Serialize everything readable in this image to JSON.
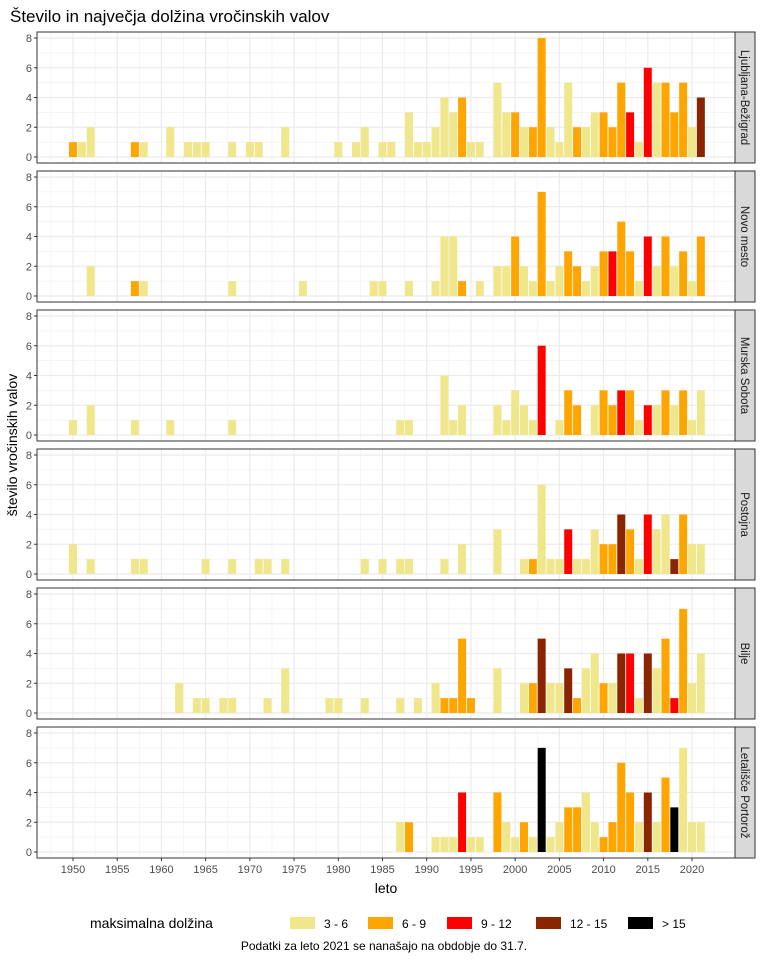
{
  "chart_data": {
    "type": "bar",
    "title": "Število in največja dolžina vročinskih valov",
    "xlabel": "leto",
    "ylabel": "število vročinskih valov",
    "xlim": [
      1946,
      2025
    ],
    "ylim": [
      0,
      8
    ],
    "x_ticks": [
      1950,
      1955,
      1960,
      1965,
      1970,
      1975,
      1980,
      1985,
      1990,
      1995,
      2000,
      2005,
      2010,
      2015,
      2020
    ],
    "y_ticks": [
      0,
      2,
      4,
      6,
      8
    ],
    "grid": true,
    "legend": {
      "title": "maksimalna dolžina",
      "placement": "bottom",
      "categories": [
        {
          "label": "3 - 6",
          "color": "#F0E68C"
        },
        {
          "label": "6 - 9",
          "color": "#FFA500"
        },
        {
          "label": "9 - 12",
          "color": "#FF0000"
        },
        {
          "label": "12 - 15",
          "color": "#8B2500"
        },
        {
          "label": "> 15",
          "color": "#000000"
        }
      ]
    },
    "note": "Podatki za leto 2021 se nanašajo na obdobje do 31.7.",
    "bar_fields": [
      "year",
      "count",
      "max_length_category_index"
    ],
    "panels": [
      {
        "name": "Ljubljana-Bežigrad",
        "bars": [
          [
            1950,
            1,
            1
          ],
          [
            1951,
            1,
            0
          ],
          [
            1952,
            2,
            0
          ],
          [
            1957,
            1,
            1
          ],
          [
            1958,
            1,
            0
          ],
          [
            1961,
            2,
            0
          ],
          [
            1963,
            1,
            0
          ],
          [
            1964,
            1,
            0
          ],
          [
            1965,
            1,
            0
          ],
          [
            1968,
            1,
            0
          ],
          [
            1970,
            1,
            0
          ],
          [
            1971,
            1,
            0
          ],
          [
            1974,
            2,
            0
          ],
          [
            1980,
            1,
            0
          ],
          [
            1982,
            1,
            0
          ],
          [
            1983,
            2,
            0
          ],
          [
            1985,
            1,
            0
          ],
          [
            1986,
            1,
            0
          ],
          [
            1988,
            3,
            0
          ],
          [
            1989,
            1,
            0
          ],
          [
            1990,
            1,
            0
          ],
          [
            1991,
            2,
            0
          ],
          [
            1992,
            4,
            0
          ],
          [
            1993,
            3,
            0
          ],
          [
            1994,
            4,
            1
          ],
          [
            1995,
            1,
            0
          ],
          [
            1996,
            1,
            0
          ],
          [
            1998,
            5,
            0
          ],
          [
            1999,
            3,
            0
          ],
          [
            2000,
            3,
            1
          ],
          [
            2001,
            2,
            0
          ],
          [
            2002,
            2,
            1
          ],
          [
            2003,
            8,
            1
          ],
          [
            2004,
            2,
            0
          ],
          [
            2005,
            1,
            0
          ],
          [
            2006,
            5,
            0
          ],
          [
            2007,
            2,
            1
          ],
          [
            2008,
            2,
            0
          ],
          [
            2009,
            3,
            0
          ],
          [
            2010,
            3,
            1
          ],
          [
            2011,
            2,
            1
          ],
          [
            2012,
            5,
            1
          ],
          [
            2013,
            3,
            2
          ],
          [
            2014,
            1,
            0
          ],
          [
            2015,
            6,
            2
          ],
          [
            2016,
            5,
            0
          ],
          [
            2017,
            5,
            1
          ],
          [
            2018,
            3,
            1
          ],
          [
            2019,
            5,
            1
          ],
          [
            2020,
            2,
            0
          ],
          [
            2021,
            4,
            3
          ]
        ]
      },
      {
        "name": "Novo mesto",
        "bars": [
          [
            1952,
            2,
            0
          ],
          [
            1957,
            1,
            1
          ],
          [
            1958,
            1,
            0
          ],
          [
            1968,
            1,
            0
          ],
          [
            1976,
            1,
            0
          ],
          [
            1984,
            1,
            0
          ],
          [
            1985,
            1,
            0
          ],
          [
            1988,
            1,
            0
          ],
          [
            1991,
            1,
            0
          ],
          [
            1992,
            4,
            0
          ],
          [
            1993,
            4,
            0
          ],
          [
            1994,
            1,
            1
          ],
          [
            1996,
            1,
            0
          ],
          [
            1998,
            2,
            0
          ],
          [
            1999,
            2,
            0
          ],
          [
            2000,
            4,
            1
          ],
          [
            2001,
            2,
            0
          ],
          [
            2002,
            1,
            0
          ],
          [
            2003,
            7,
            1
          ],
          [
            2004,
            1,
            0
          ],
          [
            2005,
            2,
            0
          ],
          [
            2006,
            3,
            1
          ],
          [
            2007,
            2,
            1
          ],
          [
            2008,
            1,
            0
          ],
          [
            2009,
            2,
            0
          ],
          [
            2010,
            3,
            1
          ],
          [
            2011,
            3,
            2
          ],
          [
            2012,
            5,
            1
          ],
          [
            2013,
            3,
            1
          ],
          [
            2014,
            1,
            0
          ],
          [
            2015,
            4,
            2
          ],
          [
            2016,
            2,
            0
          ],
          [
            2017,
            4,
            1
          ],
          [
            2018,
            2,
            0
          ],
          [
            2019,
            3,
            1
          ],
          [
            2020,
            1,
            0
          ],
          [
            2021,
            4,
            1
          ]
        ]
      },
      {
        "name": "Murska Sobota",
        "bars": [
          [
            1950,
            1,
            0
          ],
          [
            1952,
            2,
            0
          ],
          [
            1957,
            1,
            0
          ],
          [
            1961,
            1,
            0
          ],
          [
            1968,
            1,
            0
          ],
          [
            1987,
            1,
            0
          ],
          [
            1988,
            1,
            0
          ],
          [
            1992,
            4,
            0
          ],
          [
            1993,
            1,
            0
          ],
          [
            1994,
            2,
            0
          ],
          [
            1998,
            2,
            0
          ],
          [
            1999,
            1,
            0
          ],
          [
            2000,
            3,
            0
          ],
          [
            2001,
            2,
            0
          ],
          [
            2002,
            1,
            0
          ],
          [
            2003,
            6,
            2
          ],
          [
            2005,
            1,
            0
          ],
          [
            2006,
            3,
            1
          ],
          [
            2007,
            2,
            1
          ],
          [
            2009,
            2,
            0
          ],
          [
            2010,
            3,
            1
          ],
          [
            2011,
            2,
            1
          ],
          [
            2012,
            3,
            2
          ],
          [
            2013,
            3,
            1
          ],
          [
            2014,
            1,
            0
          ],
          [
            2015,
            2,
            2
          ],
          [
            2016,
            2,
            0
          ],
          [
            2017,
            3,
            1
          ],
          [
            2018,
            2,
            0
          ],
          [
            2019,
            3,
            1
          ],
          [
            2020,
            1,
            0
          ],
          [
            2021,
            3,
            0
          ]
        ]
      },
      {
        "name": "Postojna",
        "bars": [
          [
            1950,
            2,
            0
          ],
          [
            1952,
            1,
            0
          ],
          [
            1957,
            1,
            0
          ],
          [
            1958,
            1,
            0
          ],
          [
            1965,
            1,
            0
          ],
          [
            1968,
            1,
            0
          ],
          [
            1971,
            1,
            0
          ],
          [
            1972,
            1,
            0
          ],
          [
            1974,
            1,
            0
          ],
          [
            1983,
            1,
            0
          ],
          [
            1985,
            1,
            0
          ],
          [
            1987,
            1,
            0
          ],
          [
            1988,
            1,
            0
          ],
          [
            1992,
            1,
            0
          ],
          [
            1994,
            2,
            0
          ],
          [
            1998,
            3,
            0
          ],
          [
            2001,
            1,
            0
          ],
          [
            2002,
            1,
            1
          ],
          [
            2003,
            6,
            0
          ],
          [
            2004,
            1,
            0
          ],
          [
            2005,
            1,
            0
          ],
          [
            2006,
            3,
            2
          ],
          [
            2007,
            1,
            0
          ],
          [
            2008,
            1,
            0
          ],
          [
            2009,
            3,
            0
          ],
          [
            2010,
            2,
            1
          ],
          [
            2011,
            2,
            1
          ],
          [
            2012,
            4,
            3
          ],
          [
            2013,
            3,
            1
          ],
          [
            2014,
            1,
            0
          ],
          [
            2015,
            4,
            2
          ],
          [
            2016,
            3,
            0
          ],
          [
            2017,
            4,
            0
          ],
          [
            2018,
            1,
            3
          ],
          [
            2019,
            4,
            1
          ],
          [
            2020,
            2,
            0
          ],
          [
            2021,
            2,
            0
          ]
        ]
      },
      {
        "name": "Bilje",
        "bars": [
          [
            1962,
            2,
            0
          ],
          [
            1964,
            1,
            0
          ],
          [
            1965,
            1,
            0
          ],
          [
            1967,
            1,
            0
          ],
          [
            1968,
            1,
            0
          ],
          [
            1972,
            1,
            0
          ],
          [
            1974,
            3,
            0
          ],
          [
            1979,
            1,
            0
          ],
          [
            1980,
            1,
            0
          ],
          [
            1983,
            1,
            0
          ],
          [
            1987,
            1,
            0
          ],
          [
            1989,
            1,
            0
          ],
          [
            1991,
            2,
            0
          ],
          [
            1992,
            1,
            1
          ],
          [
            1993,
            1,
            1
          ],
          [
            1994,
            5,
            1
          ],
          [
            1995,
            1,
            1
          ],
          [
            1998,
            3,
            0
          ],
          [
            2001,
            2,
            0
          ],
          [
            2002,
            2,
            1
          ],
          [
            2003,
            5,
            3
          ],
          [
            2004,
            2,
            0
          ],
          [
            2005,
            2,
            0
          ],
          [
            2006,
            3,
            3
          ],
          [
            2007,
            1,
            1
          ],
          [
            2008,
            3,
            0
          ],
          [
            2009,
            4,
            0
          ],
          [
            2010,
            2,
            1
          ],
          [
            2011,
            2,
            0
          ],
          [
            2012,
            4,
            3
          ],
          [
            2013,
            4,
            2
          ],
          [
            2014,
            1,
            0
          ],
          [
            2015,
            4,
            3
          ],
          [
            2016,
            3,
            0
          ],
          [
            2017,
            5,
            1
          ],
          [
            2018,
            1,
            2
          ],
          [
            2019,
            7,
            1
          ],
          [
            2020,
            2,
            0
          ],
          [
            2021,
            4,
            0
          ]
        ]
      },
      {
        "name": "Letališče Portorož",
        "bars": [
          [
            1987,
            2,
            0
          ],
          [
            1988,
            2,
            1
          ],
          [
            1991,
            1,
            0
          ],
          [
            1992,
            1,
            0
          ],
          [
            1993,
            1,
            0
          ],
          [
            1994,
            4,
            2
          ],
          [
            1995,
            1,
            0
          ],
          [
            1996,
            1,
            0
          ],
          [
            1998,
            4,
            1
          ],
          [
            1999,
            2,
            0
          ],
          [
            2000,
            1,
            0
          ],
          [
            2001,
            2,
            1
          ],
          [
            2002,
            1,
            0
          ],
          [
            2003,
            7,
            4
          ],
          [
            2004,
            1,
            0
          ],
          [
            2005,
            2,
            0
          ],
          [
            2006,
            3,
            1
          ],
          [
            2007,
            3,
            1
          ],
          [
            2008,
            4,
            0
          ],
          [
            2009,
            2,
            0
          ],
          [
            2010,
            1,
            1
          ],
          [
            2011,
            2,
            1
          ],
          [
            2012,
            6,
            1
          ],
          [
            2013,
            4,
            1
          ],
          [
            2014,
            2,
            0
          ],
          [
            2015,
            4,
            3
          ],
          [
            2016,
            2,
            0
          ],
          [
            2017,
            5,
            1
          ],
          [
            2018,
            3,
            4
          ],
          [
            2019,
            7,
            0
          ],
          [
            2020,
            2,
            0
          ],
          [
            2021,
            2,
            0
          ]
        ]
      }
    ]
  }
}
